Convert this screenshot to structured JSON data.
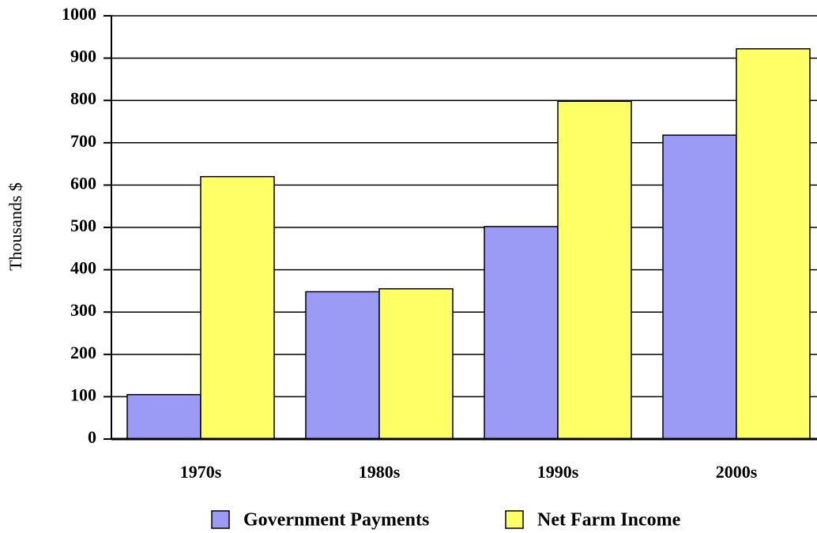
{
  "chart_data": {
    "type": "bar",
    "y_label": "Thousands $",
    "categories": [
      "1970s",
      "1980s",
      "1990s",
      "2000s"
    ],
    "series": [
      {
        "name": "Government Payments",
        "color": "#9b9bf5",
        "values": [
          105,
          348,
          502,
          718
        ]
      },
      {
        "name": "Net Farm Income",
        "color": "#ffff66",
        "values": [
          620,
          355,
          798,
          922
        ]
      }
    ],
    "ylim": [
      0,
      1000
    ],
    "yticks": [
      0,
      100,
      200,
      300,
      400,
      500,
      600,
      700,
      800,
      900,
      1000
    ],
    "grid": true
  }
}
